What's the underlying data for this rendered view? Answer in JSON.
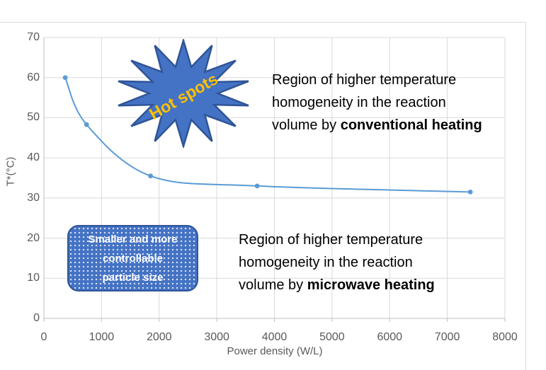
{
  "chart_data": {
    "type": "line",
    "title": "",
    "xlabel": "Power density (W/L)",
    "ylabel": "T*(°C)",
    "x": [
      370,
      740,
      1850,
      3700,
      7400
    ],
    "y": [
      60,
      48.3,
      35.5,
      33,
      31.5
    ],
    "xlim": [
      0,
      8000
    ],
    "ylim": [
      0,
      70
    ],
    "x_ticks": [
      0,
      1000,
      2000,
      3000,
      4000,
      5000,
      6000,
      7000,
      8000
    ],
    "y_ticks": [
      0,
      10,
      20,
      30,
      40,
      50,
      60,
      70
    ],
    "grid": true,
    "legend_position": "none",
    "line_color": "#5B9BD5",
    "marker_color": "#5B9BD5",
    "gridline_color": "#D9D9D9",
    "axis_line_color": "#BFBFBF",
    "tick_label_color": "#595959"
  },
  "annotations": {
    "hot_spots": {
      "label": "Hot spots",
      "text_color": "#FFC000",
      "fill_color": "#4472C4",
      "border_color": "#2F5597"
    },
    "particle_box": {
      "line1": "Smaller and more",
      "line2": "controllable",
      "line3": "particle size",
      "fill_color": "#4472C4",
      "border_color": "#2F5597",
      "text_color": "#FFFFFF"
    },
    "conventional_region": {
      "line1": "Region of higher temperature",
      "line2": "homogeneity in the reaction",
      "line3_prefix": "volume by ",
      "line3_bold": "conventional heating",
      "text_color": "#000000"
    },
    "microwave_region": {
      "line1": "Region of higher temperature",
      "line2": "homogeneity in the reaction",
      "line3_prefix": "volume by ",
      "line3_bold": "microwave heating",
      "text_color": "#000000"
    }
  }
}
